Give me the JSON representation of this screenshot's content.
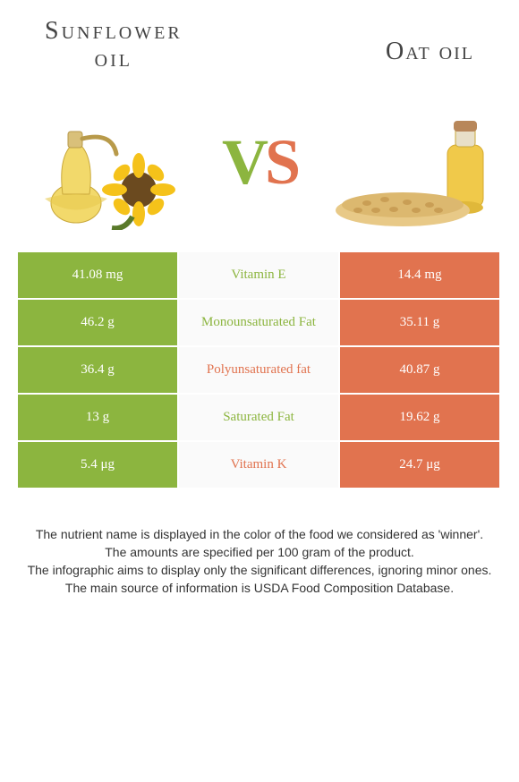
{
  "colors": {
    "left": "#8cb53f",
    "right": "#e1734f",
    "mid_bg": "#fafafa",
    "vs_v": "#8cb53f",
    "vs_s": "#e1734f"
  },
  "titles": {
    "left_line1": "Sunflower",
    "left_line2": "oil",
    "right": "Oat oil"
  },
  "vs": {
    "v": "V",
    "s": "S"
  },
  "rows": [
    {
      "left": "41.08 mg",
      "mid": "Vitamin E",
      "right": "14.4 mg",
      "winner": "left"
    },
    {
      "left": "46.2 g",
      "mid": "Monounsaturated Fat",
      "right": "35.11 g",
      "winner": "left"
    },
    {
      "left": "36.4 g",
      "mid": "Polyunsaturated fat",
      "right": "40.87 g",
      "winner": "right"
    },
    {
      "left": "13 g",
      "mid": "Saturated Fat",
      "right": "19.62 g",
      "winner": "left"
    },
    {
      "left": "5.4 μg",
      "mid": "Vitamin K",
      "right": "24.7 μg",
      "winner": "right"
    }
  ],
  "footer": {
    "l1": "The nutrient name is displayed in the color of the food we considered as 'winner'.",
    "l2": "The amounts are specified per 100 gram of the product.",
    "l3": "The infographic aims to display only the significant differences, ignoring minor ones.",
    "l4": "The main source of information is USDA Food Composition Database."
  }
}
